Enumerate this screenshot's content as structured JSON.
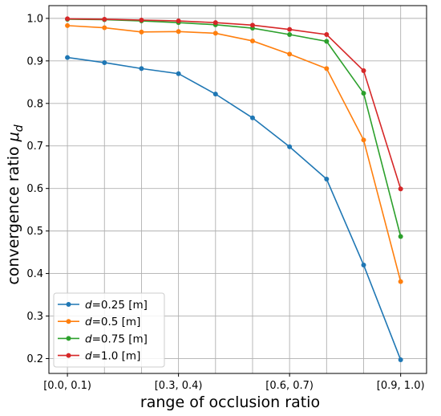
{
  "chart_data": {
    "type": "line",
    "title": "",
    "xlabel": "range of occlusion ratio",
    "ylabel": {
      "main": "convergence ratio ",
      "symbol": "μ",
      "subscript": "d"
    },
    "x": [
      0,
      1,
      2,
      3,
      4,
      5,
      6,
      7,
      8,
      9
    ],
    "xlim": [
      -0.5,
      9.7
    ],
    "x_ticks": [
      0,
      3,
      6,
      9
    ],
    "x_tick_labels": [
      "[0.0, 0.1)",
      "[0.3, 0.4)",
      "[0.6, 0.7)",
      "[0.9, 1.0)"
    ],
    "x_gridlines": [
      0,
      1,
      2,
      3,
      4,
      5,
      6,
      7,
      8,
      9
    ],
    "ylim": [
      0.165,
      1.03
    ],
    "y_ticks": [
      0.2,
      0.3,
      0.4,
      0.5,
      0.6,
      0.7,
      0.8,
      0.9,
      1.0
    ],
    "y_tick_labels": [
      "0.2",
      "0.3",
      "0.4",
      "0.5",
      "0.6",
      "0.7",
      "0.8",
      "0.9",
      "1.0"
    ],
    "grid": true,
    "legend_position": "lower-left",
    "series": [
      {
        "name_var": "d",
        "name_rest": "=0.25 [m]",
        "color": "#1f77b4",
        "values": [
          0.908,
          0.896,
          0.882,
          0.87,
          0.822,
          0.766,
          0.698,
          0.622,
          0.42,
          0.197
        ]
      },
      {
        "name_var": "d",
        "name_rest": "=0.5 [m]",
        "color": "#ff7f0e",
        "values": [
          0.983,
          0.978,
          0.968,
          0.969,
          0.965,
          0.947,
          0.916,
          0.882,
          0.714,
          0.381
        ]
      },
      {
        "name_var": "d",
        "name_rest": "=0.75 [m]",
        "color": "#2ca02c",
        "values": [
          0.998,
          0.997,
          0.994,
          0.99,
          0.985,
          0.977,
          0.962,
          0.946,
          0.824,
          0.487
        ]
      },
      {
        "name_var": "d",
        "name_rest": "=1.0 [m]",
        "color": "#d62728",
        "values": [
          0.999,
          0.998,
          0.996,
          0.994,
          0.99,
          0.984,
          0.974,
          0.962,
          0.877,
          0.599
        ]
      }
    ]
  }
}
